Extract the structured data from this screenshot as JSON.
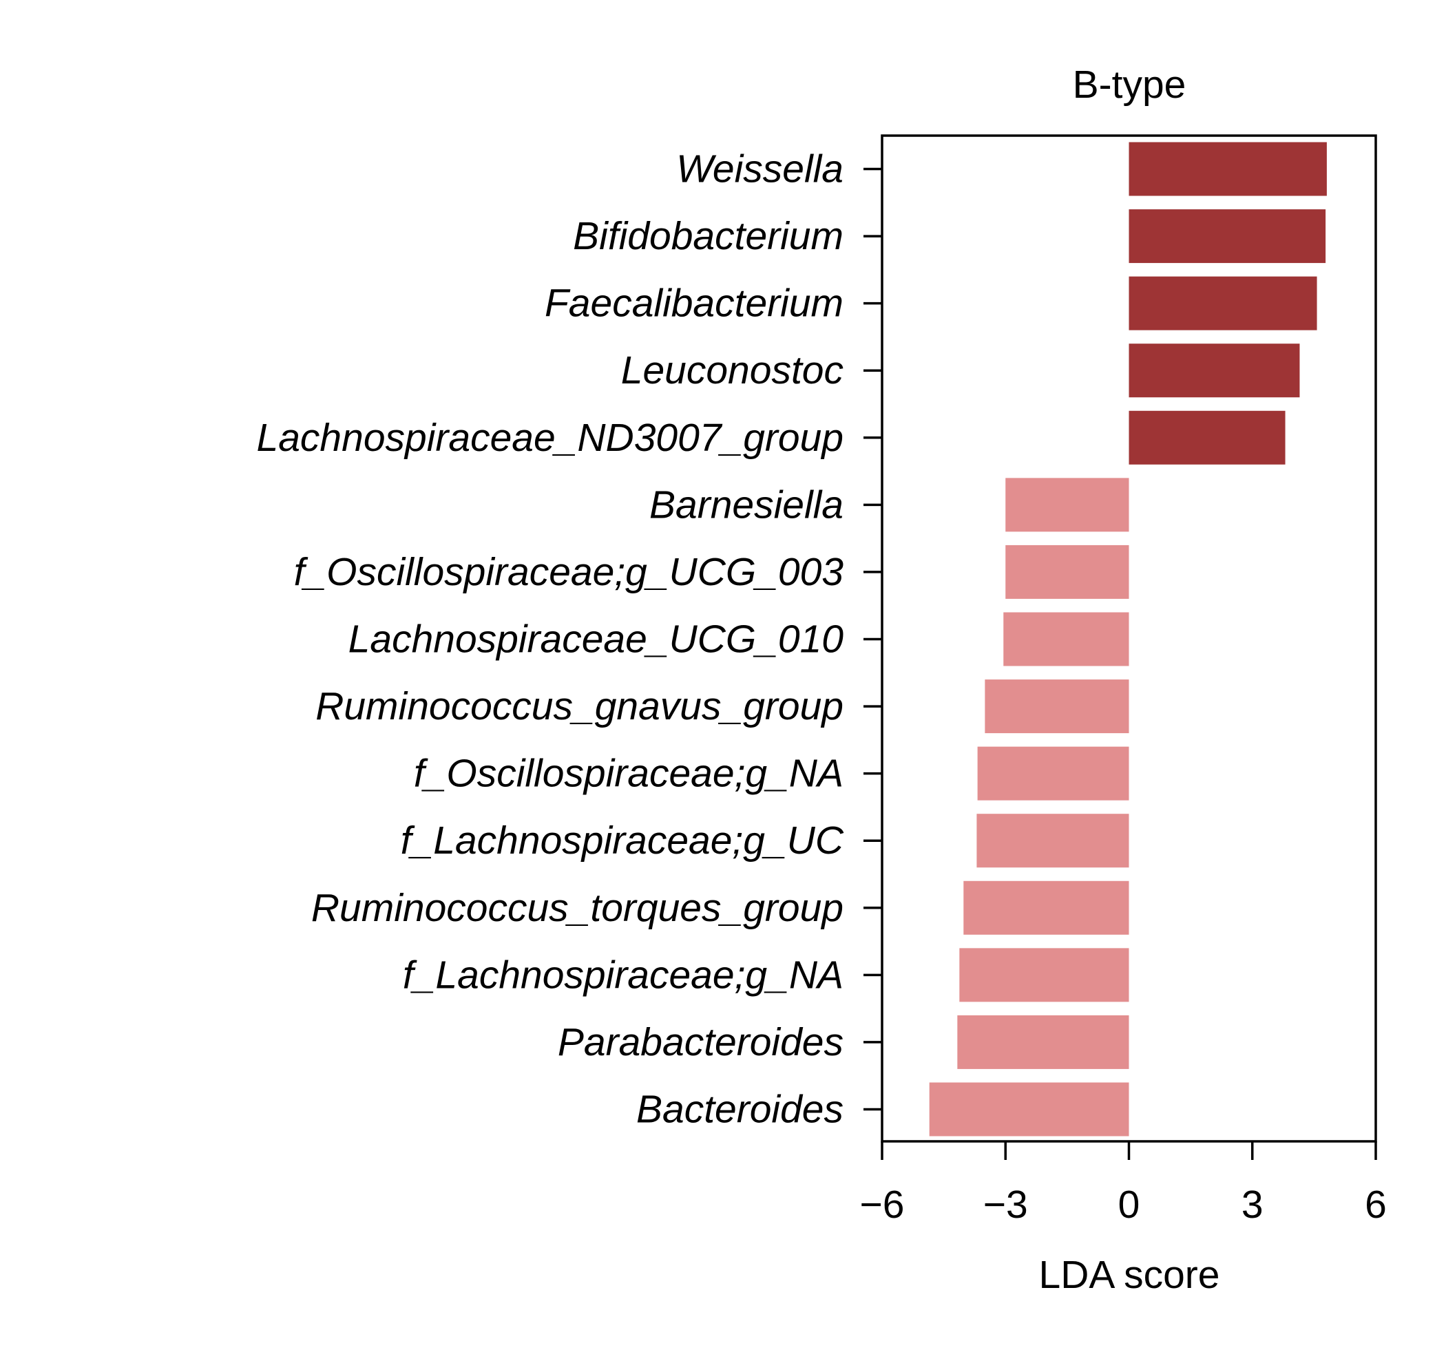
{
  "chart_data": {
    "type": "bar",
    "orientation": "horizontal",
    "title": "B-type",
    "xlabel": "LDA score",
    "ylabel": "",
    "xlim": [
      -6,
      6
    ],
    "xticks": [
      -6,
      -3,
      0,
      3,
      6
    ],
    "xtick_labels": [
      "−6",
      "−3",
      "0",
      "3",
      "6"
    ],
    "grid": false,
    "categories": [
      "Weissella",
      "Bifidobacterium",
      "Faecalibacterium",
      "Leuconostoc",
      "Lachnospiraceae_ND3007_group",
      "Barnesiella",
      "f_Oscillospiraceae;g_UCG_003",
      "Lachnospiraceae_UCG_010",
      "Ruminococcus_gnavus_group",
      "f_Oscillospiraceae;g_NA",
      "f_Lachnospiraceae;g_UC",
      "Ruminococcus_torques_group",
      "f_Lachnospiraceae;g_NA",
      "Parabacteroides",
      "Bacteroides"
    ],
    "values": [
      4.81,
      4.78,
      4.57,
      4.15,
      3.8,
      -3.0,
      -3.0,
      -3.05,
      -3.5,
      -3.68,
      -3.7,
      -4.02,
      -4.12,
      -4.17,
      -4.85
    ],
    "colors": {
      "positive": "#9e3435",
      "negative": "#e28e8f"
    }
  }
}
